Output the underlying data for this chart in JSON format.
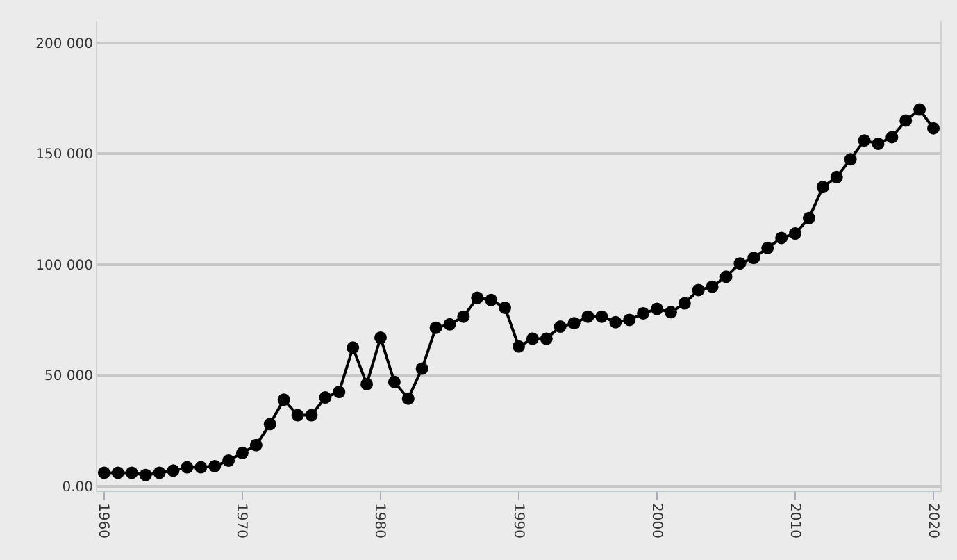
{
  "chart_data": {
    "type": "line",
    "x": [
      1960,
      1961,
      1962,
      1963,
      1964,
      1965,
      1966,
      1967,
      1968,
      1969,
      1970,
      1971,
      1972,
      1973,
      1974,
      1975,
      1976,
      1977,
      1978,
      1979,
      1980,
      1981,
      1982,
      1983,
      1984,
      1985,
      1986,
      1987,
      1988,
      1989,
      1990,
      1991,
      1992,
      1993,
      1994,
      1995,
      1996,
      1997,
      1998,
      1999,
      2000,
      2001,
      2002,
      2003,
      2004,
      2005,
      2006,
      2007,
      2008,
      2009,
      2010,
      2011,
      2012,
      2013,
      2014,
      2015,
      2016,
      2017,
      2018,
      2019,
      2020
    ],
    "series": [
      {
        "color": "#000000",
        "values": [
          6000,
          6000,
          6000,
          5000,
          6000,
          7000,
          8500,
          8500,
          9000,
          11500,
          15000,
          18500,
          28000,
          39000,
          32000,
          32000,
          40000,
          42500,
          62500,
          46000,
          67000,
          47000,
          39500,
          53000,
          71500,
          73000,
          76500,
          85000,
          84000,
          80500,
          63000,
          66500,
          66500,
          72000,
          73500,
          76500,
          76500,
          74000,
          75000,
          78000,
          80000,
          78500,
          82500,
          88500,
          90000,
          94500,
          100500,
          103000,
          107500,
          112000,
          114000,
          121000,
          135000,
          139500,
          147500,
          156000,
          154500,
          157500,
          165000,
          170000,
          161500
        ]
      }
    ],
    "xlim": [
      1959.5,
      2020.5
    ],
    "xticks": [
      1960,
      1970,
      1980,
      1990,
      2000,
      2010,
      2020
    ],
    "ylim": [
      -2000,
      210000
    ],
    "yticks": [
      {
        "value": 0,
        "label": "0.00"
      },
      {
        "value": 50000,
        "label": "50 000"
      },
      {
        "value": 100000,
        "label": "100 000"
      },
      {
        "value": 150000,
        "label": "150 000"
      },
      {
        "value": 200000,
        "label": "200 000"
      }
    ],
    "grid": "y",
    "marker": "circle",
    "line_style": "solid",
    "legend": false
  }
}
